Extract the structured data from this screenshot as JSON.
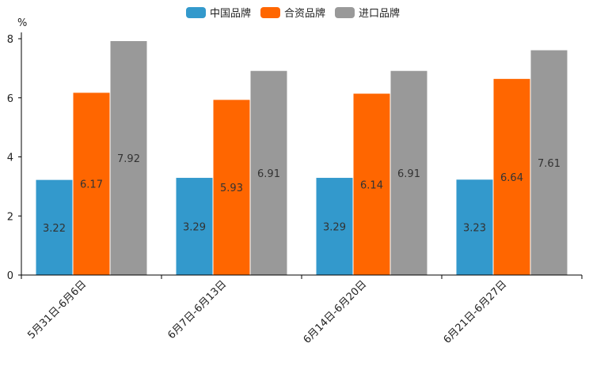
{
  "chart_data": {
    "type": "bar",
    "title": "",
    "xlabel": "",
    "ylabel": "%",
    "ylim": [
      0,
      8
    ],
    "yticks": [
      0,
      2,
      4,
      6,
      8
    ],
    "grid": false,
    "legend_position": "top-center",
    "categories": [
      "5月31日-6月6日",
      "6月7日-6月13日",
      "6月14日-6月20日",
      "6月21日-6月27日"
    ],
    "series": [
      {
        "name": "中国品牌",
        "color": "#3399cc",
        "values": [
          3.22,
          3.29,
          3.29,
          3.23
        ]
      },
      {
        "name": "合资品牌",
        "color": "#ff6600",
        "values": [
          6.17,
          5.93,
          6.14,
          6.64
        ]
      },
      {
        "name": "进口品牌",
        "color": "#999999",
        "values": [
          7.92,
          6.91,
          6.91,
          7.61
        ]
      }
    ]
  }
}
